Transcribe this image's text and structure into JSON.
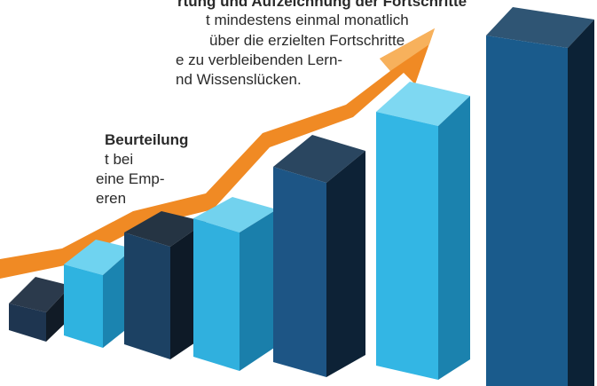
{
  "section_1": {
    "heading": "rtung und Aufzeichnung der Fortschritte",
    "lines": [
      "t mindestens einmal monatlich",
      "über die erzielten Fortschritte",
      "e zu verbleibenden Lern-",
      "nd Wissenslücken."
    ]
  },
  "section_2": {
    "heading": "Beurteilung",
    "lines": [
      "t bei",
      "eine Emp-",
      "eren"
    ]
  }
}
